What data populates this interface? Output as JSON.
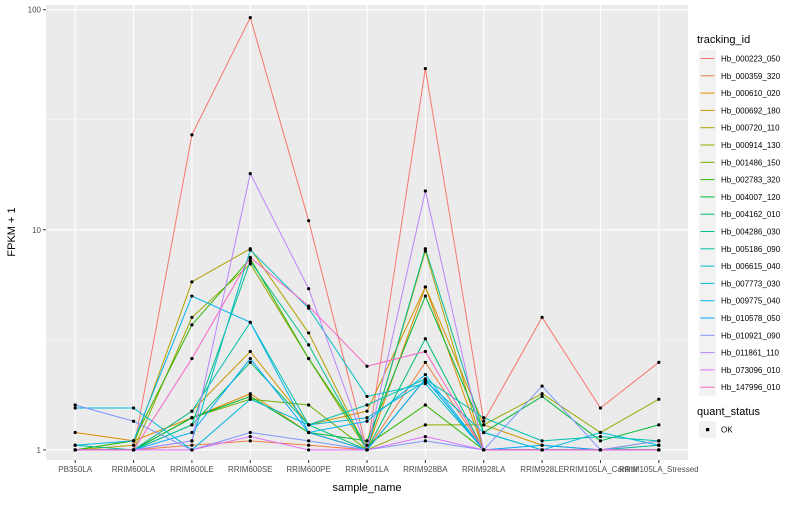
{
  "chart_data": {
    "type": "line",
    "xlabel": "sample_name",
    "ylabel": "FPKM + 1",
    "y_scale": "log10",
    "ylim": [
      0.9,
      105
    ],
    "y_ticks": [
      1,
      10,
      100
    ],
    "y_tick_labels": [
      "1",
      "10",
      "100"
    ],
    "grid": true,
    "legend_position": "right",
    "categories": [
      "PB350LA",
      "RRIM600LA",
      "RRIM600LE",
      "RRIM600SE",
      "RRIM600PE",
      "RRIM901LA",
      "RRIM928BA",
      "RRIM928LA",
      "RRIM928LE",
      "RRIM105LA_Control",
      "RRIM105LA_Stressed"
    ],
    "legend": {
      "color_title": "tracking_id",
      "shape_title": "quant_status",
      "shape_entries": [
        "OK"
      ]
    },
    "series": [
      {
        "name": "Hb_000223_050",
        "color": "#F8766D",
        "values": [
          1.0,
          1.0,
          27.0,
          92.0,
          11.0,
          1.0,
          54.0,
          1.35,
          4.0,
          1.55,
          2.5
        ]
      },
      {
        "name": "Hb_000359_320",
        "color": "#EE8043",
        "values": [
          1.0,
          1.0,
          1.05,
          1.1,
          1.05,
          1.0,
          2.5,
          1.0,
          1.0,
          1.0,
          1.0
        ]
      },
      {
        "name": "Hb_000610_020",
        "color": "#DF8B00",
        "values": [
          1.2,
          1.1,
          1.4,
          1.8,
          1.2,
          1.0,
          5.5,
          1.0,
          1.0,
          1.0,
          1.05
        ]
      },
      {
        "name": "Hb_000692_180",
        "color": "#CC9600",
        "values": [
          1.0,
          1.0,
          1.5,
          2.8,
          1.3,
          1.5,
          5.5,
          1.3,
          1.05,
          1.0,
          1.1
        ]
      },
      {
        "name": "Hb_000720_110",
        "color": "#B3A000",
        "values": [
          1.0,
          1.05,
          5.8,
          8.2,
          3.4,
          1.0,
          8.0,
          1.0,
          1.0,
          1.0,
          1.0
        ]
      },
      {
        "name": "Hb_000914_130",
        "color": "#95A900",
        "values": [
          1.0,
          1.0,
          4.0,
          7.0,
          2.6,
          1.0,
          1.3,
          1.3,
          1.8,
          1.2,
          1.7
        ]
      },
      {
        "name": "Hb_001486_150",
        "color": "#6FB000",
        "values": [
          1.0,
          1.0,
          1.4,
          1.7,
          1.6,
          1.0,
          2.1,
          1.0,
          1.0,
          1.0,
          1.0
        ]
      },
      {
        "name": "Hb_002783_320",
        "color": "#2EB600",
        "values": [
          1.0,
          1.1,
          3.7,
          7.4,
          2.6,
          1.05,
          1.6,
          1.0,
          1.0,
          1.0,
          1.0
        ]
      },
      {
        "name": "Hb_004007_120",
        "color": "#00BA38",
        "values": [
          1.0,
          1.0,
          1.4,
          1.75,
          1.2,
          1.1,
          5.0,
          1.2,
          1.75,
          1.1,
          1.3
        ]
      },
      {
        "name": "Hb_004162_010",
        "color": "#00BD6D",
        "values": [
          1.0,
          1.0,
          1.3,
          2.5,
          1.3,
          1.0,
          3.2,
          1.0,
          1.0,
          1.0,
          1.0
        ]
      },
      {
        "name": "Hb_004286_030",
        "color": "#00BF8E",
        "values": [
          1.05,
          1.0,
          1.3,
          7.2,
          3.0,
          1.0,
          8.2,
          1.2,
          1.0,
          1.0,
          1.0
        ]
      },
      {
        "name": "Hb_005186_090",
        "color": "#00C0AB",
        "values": [
          1.0,
          1.0,
          1.5,
          3.8,
          1.3,
          1.6,
          2.1,
          1.4,
          1.1,
          1.15,
          1.1
        ]
      },
      {
        "name": "Hb_006615_040",
        "color": "#00BFC4",
        "values": [
          1.0,
          1.0,
          1.1,
          8.1,
          4.4,
          1.75,
          2.0,
          1.0,
          1.0,
          1.0,
          1.05
        ]
      },
      {
        "name": "Hb_007773_030",
        "color": "#00BBDA",
        "values": [
          1.55,
          1.55,
          1.0,
          1.7,
          1.3,
          1.4,
          2.05,
          1.2,
          1.0,
          1.2,
          1.05
        ]
      },
      {
        "name": "Hb_009775_040",
        "color": "#00B4EF",
        "values": [
          1.05,
          1.1,
          5.0,
          3.8,
          1.2,
          1.35,
          2.2,
          1.0,
          1.0,
          1.0,
          1.0
        ]
      },
      {
        "name": "Hb_010578_050",
        "color": "#00A9FF",
        "values": [
          1.0,
          1.0,
          1.2,
          2.6,
          1.2,
          1.0,
          2.1,
          1.0,
          1.05,
          1.0,
          1.0
        ]
      },
      {
        "name": "Hb_010921_090",
        "color": "#7F96FF",
        "values": [
          1.6,
          1.35,
          1.0,
          1.2,
          1.1,
          1.0,
          1.1,
          1.0,
          1.95,
          1.0,
          1.1
        ]
      },
      {
        "name": "Hb_011861_110",
        "color": "#BB83FF",
        "values": [
          1.0,
          1.0,
          1.1,
          18.0,
          5.4,
          1.0,
          15.0,
          1.0,
          1.0,
          1.0,
          1.0
        ]
      },
      {
        "name": "Hb_073096_010",
        "color": "#E06CFF",
        "values": [
          1.0,
          1.0,
          1.0,
          1.15,
          1.0,
          1.0,
          1.15,
          1.0,
          1.0,
          1.0,
          1.0
        ]
      },
      {
        "name": "Hb_147996_010",
        "color": "#F766C7",
        "values": [
          1.0,
          1.0,
          2.6,
          7.5,
          4.5,
          2.4,
          2.8,
          1.0,
          1.0,
          1.0,
          1.0
        ]
      }
    ]
  }
}
